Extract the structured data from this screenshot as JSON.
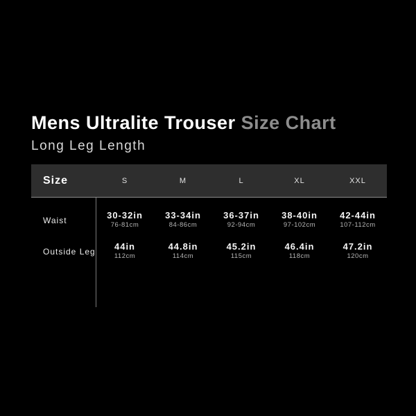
{
  "colors": {
    "background": "#000000",
    "header_bar": "#2e2e2e",
    "title_white": "#ffffff",
    "title_accent_gray": "#8d8d8d",
    "secondary_text": "#b5b5b5"
  },
  "chart_data": {
    "type": "table",
    "title_main": "Mens Ultralite Trouser",
    "title_accent": "Size Chart",
    "subtitle": "Long Leg Length",
    "corner_header": "Size",
    "size_columns": [
      "S",
      "M",
      "L",
      "XL",
      "XXL"
    ],
    "rows": [
      {
        "label": "Waist",
        "inches": [
          "30-32in",
          "33-34in",
          "36-37in",
          "38-40in",
          "42-44in"
        ],
        "cm": [
          "76-81cm",
          "84-86cm",
          "92-94cm",
          "97-102cm",
          "107-112cm"
        ]
      },
      {
        "label": "Outside Leg",
        "inches": [
          "44in",
          "44.8in",
          "45.2in",
          "46.4in",
          "47.2in"
        ],
        "cm": [
          "112cm",
          "114cm",
          "115cm",
          "118cm",
          "120cm"
        ]
      }
    ]
  }
}
